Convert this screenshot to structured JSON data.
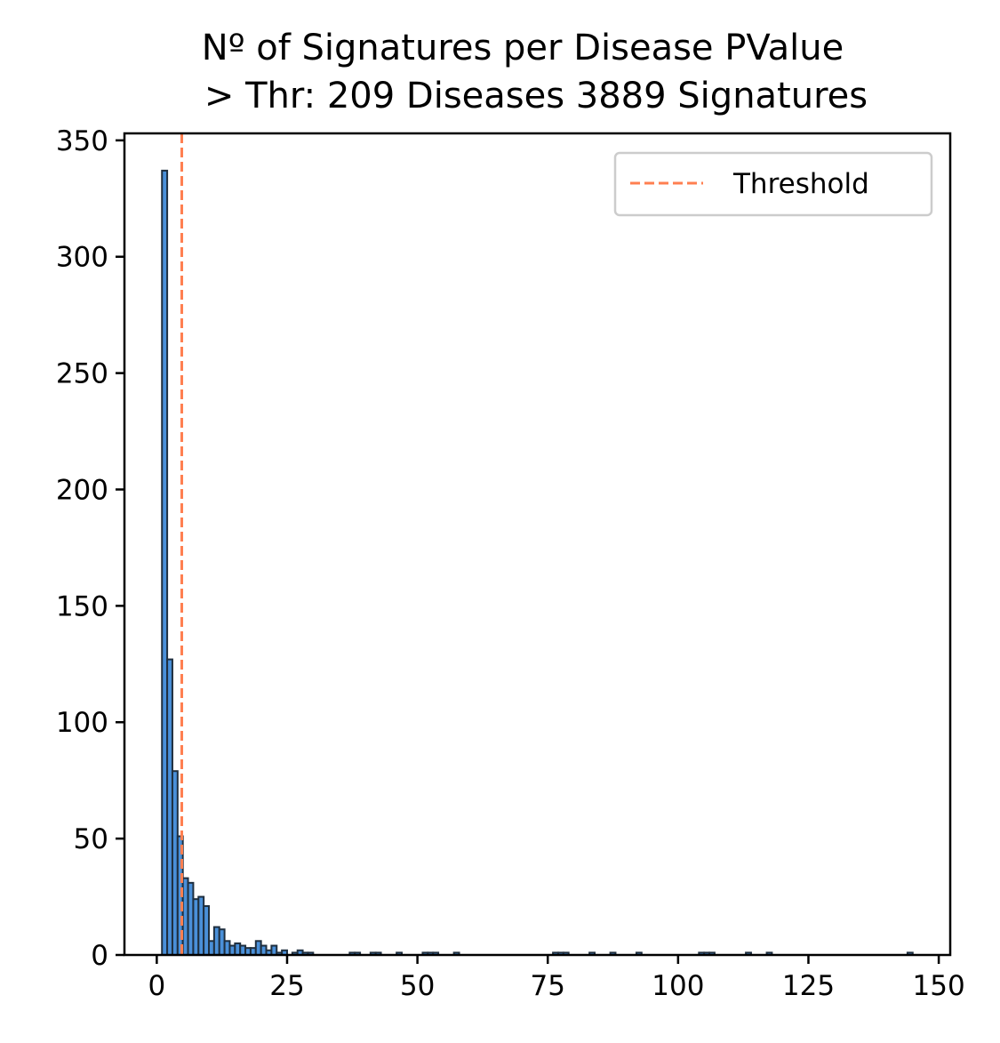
{
  "chart_data": {
    "type": "bar",
    "title": "Nº of Signatures per Disease PValue",
    "subtitle": "> Thr: 209 Diseases 3889 Signatures",
    "xlabel": "",
    "ylabel": "",
    "xlim": [
      -6.2,
      152.2
    ],
    "ylim": [
      0,
      353
    ],
    "xticks": [
      0,
      25,
      50,
      75,
      100,
      125,
      150
    ],
    "xtick_labels": [
      "0",
      "25",
      "50",
      "75",
      "100",
      "125",
      "150"
    ],
    "yticks": [
      0,
      50,
      100,
      150,
      200,
      250,
      300,
      350
    ],
    "ytick_labels": [
      "0",
      "50",
      "100",
      "150",
      "200",
      "250",
      "300",
      "350"
    ],
    "bin_width": 1,
    "bin_start": 1,
    "values": [
      337,
      127,
      79,
      51,
      33,
      31,
      24,
      25,
      21,
      6,
      12,
      11,
      6,
      4,
      5,
      4,
      3,
      3,
      6,
      4,
      2,
      4,
      1,
      2,
      0,
      1,
      2,
      1,
      1,
      0,
      0,
      0,
      0,
      0,
      0,
      0,
      1,
      1,
      0,
      0,
      1,
      1,
      0,
      0,
      0,
      1,
      0,
      0,
      0,
      0,
      1,
      1,
      1,
      0,
      0,
      0,
      1,
      0,
      0,
      0,
      0,
      0,
      0,
      0,
      0,
      0,
      0,
      0,
      0,
      0,
      0,
      0,
      0,
      0,
      0,
      1,
      1,
      1,
      0,
      0,
      0,
      0,
      1,
      0,
      0,
      0,
      1,
      0,
      0,
      0,
      0,
      1,
      0,
      0,
      0,
      0,
      0,
      0,
      0,
      0,
      0,
      0,
      0,
      1,
      1,
      1,
      0,
      0,
      0,
      0,
      0,
      0,
      1,
      0,
      0,
      0,
      1,
      0,
      0,
      0,
      0,
      0,
      0,
      0,
      0,
      0,
      0,
      0,
      0,
      0,
      0,
      0,
      0,
      0,
      0,
      0,
      0,
      0,
      0,
      0,
      0,
      0,
      0,
      1,
      0
    ],
    "bar_color": "#4a90d9",
    "bar_edge_color": "#1f2f3f",
    "threshold": {
      "value": 4.8,
      "label": "Threshold",
      "color": "#ff7f50",
      "style": "dashed"
    },
    "legend_position": "top-right",
    "grid": false
  }
}
